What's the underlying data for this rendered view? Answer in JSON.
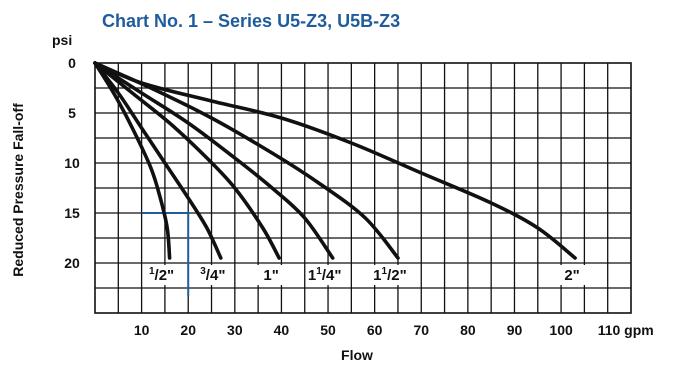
{
  "chart_data": {
    "type": "line",
    "title": "Chart No. 1 – Series U5-Z3, U5B-Z3",
    "xlabel": "Flow",
    "ylabel": "Reduced Pressure Fall-off",
    "x_unit": "gpm",
    "y_unit": "psi",
    "xlim": [
      0,
      115
    ],
    "ylim": [
      0,
      25
    ],
    "y_inverted": true,
    "grid": true,
    "x_ticks": [
      10,
      20,
      30,
      40,
      50,
      60,
      70,
      80,
      90,
      100,
      110
    ],
    "x_tick_labels": [
      "10",
      "20",
      "30",
      "40",
      "50",
      "60",
      "70",
      "80",
      "90",
      "100",
      "110 gpm"
    ],
    "y_ticks": [
      0,
      5,
      10,
      15,
      20
    ],
    "y_tick_labels": [
      "0",
      "5",
      "10",
      "15",
      "20"
    ],
    "series": [
      {
        "name": "1/2\"",
        "whole": "",
        "num": "1",
        "den": "2",
        "color": "#111111",
        "points": [
          [
            0,
            0
          ],
          [
            4,
            3
          ],
          [
            8,
            6.5
          ],
          [
            12,
            10.5
          ],
          [
            14,
            13.5
          ],
          [
            15.5,
            16.5
          ],
          [
            16,
            19.5
          ]
        ]
      },
      {
        "name": "3/4\"",
        "whole": "",
        "num": "3",
        "den": "4",
        "color": "#111111",
        "points": [
          [
            0,
            0
          ],
          [
            5,
            3
          ],
          [
            10,
            6.5
          ],
          [
            15,
            10
          ],
          [
            20,
            13.5
          ],
          [
            24,
            16.5
          ],
          [
            27,
            19.5
          ]
        ]
      },
      {
        "name": "1\"",
        "whole": "1",
        "num": "",
        "den": "",
        "color": "#111111",
        "points": [
          [
            0,
            0
          ],
          [
            8,
            3
          ],
          [
            16,
            6
          ],
          [
            24,
            9.5
          ],
          [
            30,
            12.5
          ],
          [
            36,
            16.5
          ],
          [
            39.5,
            19.5
          ]
        ]
      },
      {
        "name": "1 1/4\"",
        "whole": "1",
        "num": "1",
        "den": "4",
        "color": "#111111",
        "points": [
          [
            0,
            0
          ],
          [
            10,
            3
          ],
          [
            20,
            6
          ],
          [
            30,
            9.5
          ],
          [
            38,
            12.5
          ],
          [
            45,
            15.5
          ],
          [
            51,
            19.5
          ]
        ]
      },
      {
        "name": "1 1/2\"",
        "whole": "1",
        "num": "1",
        "den": "2",
        "color": "#111111",
        "points": [
          [
            0,
            0
          ],
          [
            12,
            2.5
          ],
          [
            25,
            5.5
          ],
          [
            38,
            9
          ],
          [
            48,
            12
          ],
          [
            58,
            15.5
          ],
          [
            65,
            19.5
          ]
        ]
      },
      {
        "name": "2\"",
        "whole": "",
        "num": "",
        "den": "",
        "text": "2\"",
        "color": "#111111",
        "points": [
          [
            0,
            0
          ],
          [
            10,
            2
          ],
          [
            25,
            3.8
          ],
          [
            40,
            5.5
          ],
          [
            55,
            8
          ],
          [
            70,
            11
          ],
          [
            85,
            14
          ],
          [
            95,
            16.5
          ],
          [
            103,
            19.5
          ]
        ]
      }
    ],
    "example_line": {
      "color": "#1f5c9e",
      "flow": 20,
      "pressure": 15,
      "from_flow": 10
    }
  }
}
